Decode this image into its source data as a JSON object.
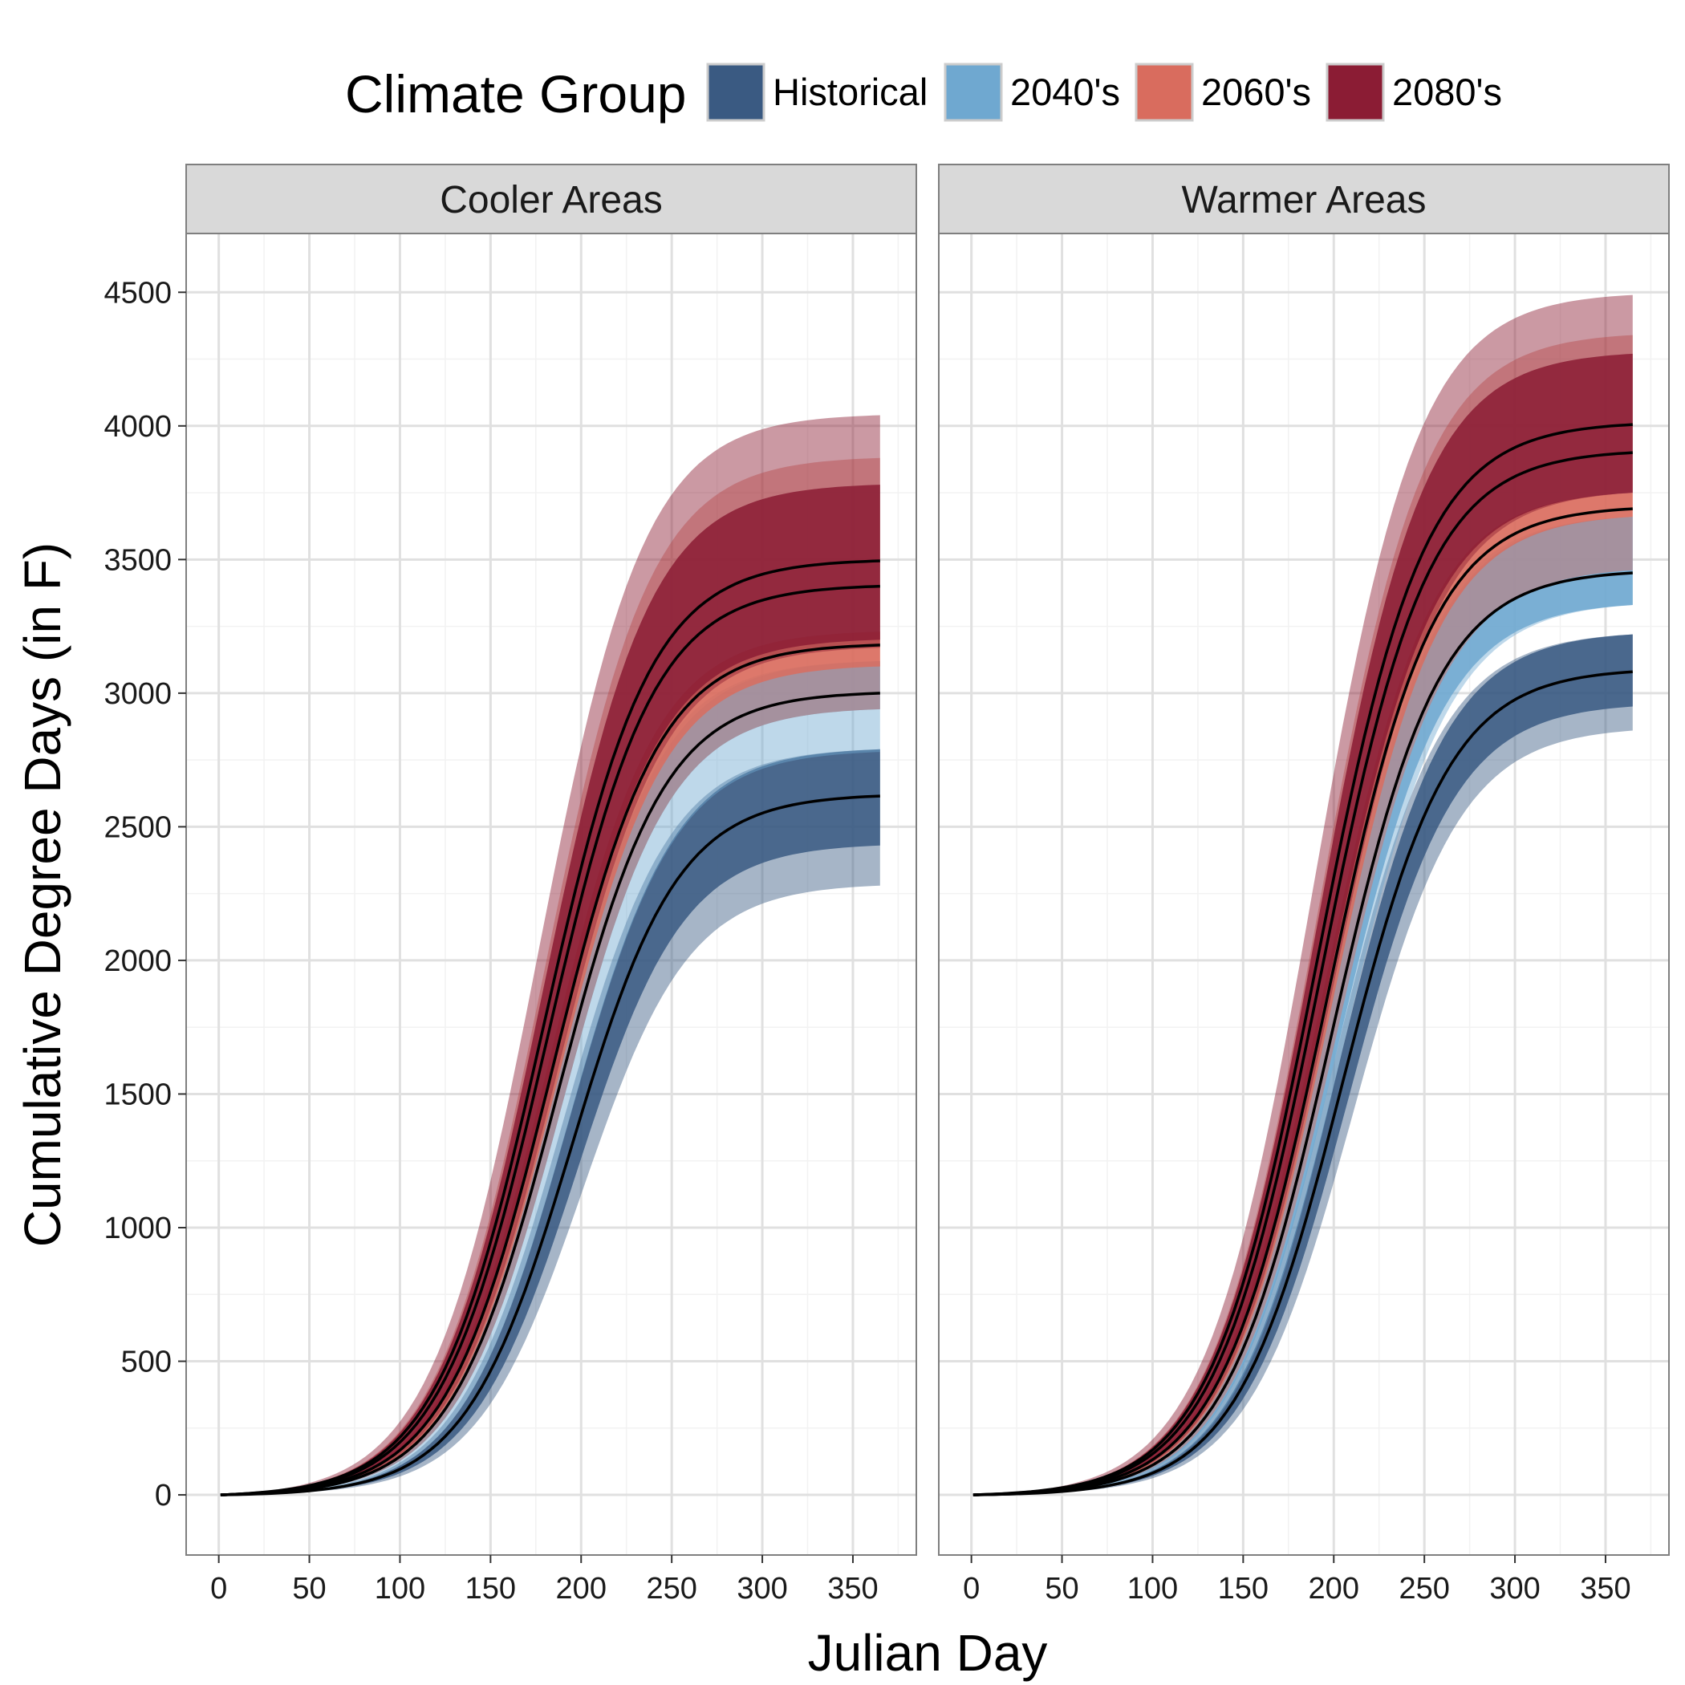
{
  "legend": {
    "title": "Climate Group",
    "items": [
      {
        "label": "Historical",
        "color": "#3a5a82"
      },
      {
        "label": "2040's",
        "color": "#6fa8d0"
      },
      {
        "label": "2060's",
        "color": "#d96c5e"
      },
      {
        "label": "2080's",
        "color": "#8b1c34"
      }
    ]
  },
  "chart_data": {
    "type": "area",
    "xlabel": "Julian Day",
    "ylabel": "Cumulative Degree Days (in F)",
    "xlim": [
      -18,
      385
    ],
    "ylim": [
      -225,
      4720
    ],
    "x_ticks": [
      0,
      50,
      100,
      150,
      200,
      250,
      300,
      350
    ],
    "y_ticks": [
      0,
      500,
      1000,
      1500,
      2000,
      2500,
      3000,
      3500,
      4000,
      4500
    ],
    "grid": true,
    "legend_position": "top",
    "panels": [
      {
        "title": "Cooler Areas",
        "series": [
          {
            "name": "Historical",
            "midpoint_day": 195,
            "median_final": 2615,
            "band_inner_final": [
              2430,
              2790
            ],
            "band_outer_final": [
              2280,
              2790
            ]
          },
          {
            "name": "2040's",
            "midpoint_day": 187,
            "median_final": 3000,
            "band_inner_final": [
              2940,
              3120
            ],
            "band_outer_final": [
              2780,
              3120
            ]
          },
          {
            "name": "2060's",
            "midpoint_day": 184,
            "median_final": 3180,
            "band_inner_final": [
              3100,
              3230
            ],
            "band_outer_final": [
              2940,
              3880
            ]
          },
          {
            "name": "2080's",
            "midpoint_day": 181,
            "median_final": [
              3400,
              3495
            ],
            "band_inner_final": [
              3200,
              3780
            ],
            "band_outer_final": [
              3170,
              4040
            ]
          }
        ]
      },
      {
        "title": "Warmer Areas",
        "series": [
          {
            "name": "Historical",
            "midpoint_day": 205,
            "median_final": 3080,
            "band_inner_final": [
              2950,
              3220
            ],
            "band_outer_final": [
              2860,
              3220
            ]
          },
          {
            "name": "2040's",
            "midpoint_day": 199,
            "median_final": 3450,
            "band_inner_final": [
              3330,
              3660
            ],
            "band_outer_final": [
              3330,
              3660
            ]
          },
          {
            "name": "2060's",
            "midpoint_day": 196,
            "median_final": 3690,
            "band_inner_final": [
              3660,
              3750
            ],
            "band_outer_final": [
              3460,
              4340
            ]
          },
          {
            "name": "2080's",
            "midpoint_day": 193,
            "median_final": [
              3900,
              4005
            ],
            "band_inner_final": [
              3750,
              4270
            ],
            "band_outer_final": [
              3750,
              4490
            ]
          }
        ]
      }
    ]
  }
}
